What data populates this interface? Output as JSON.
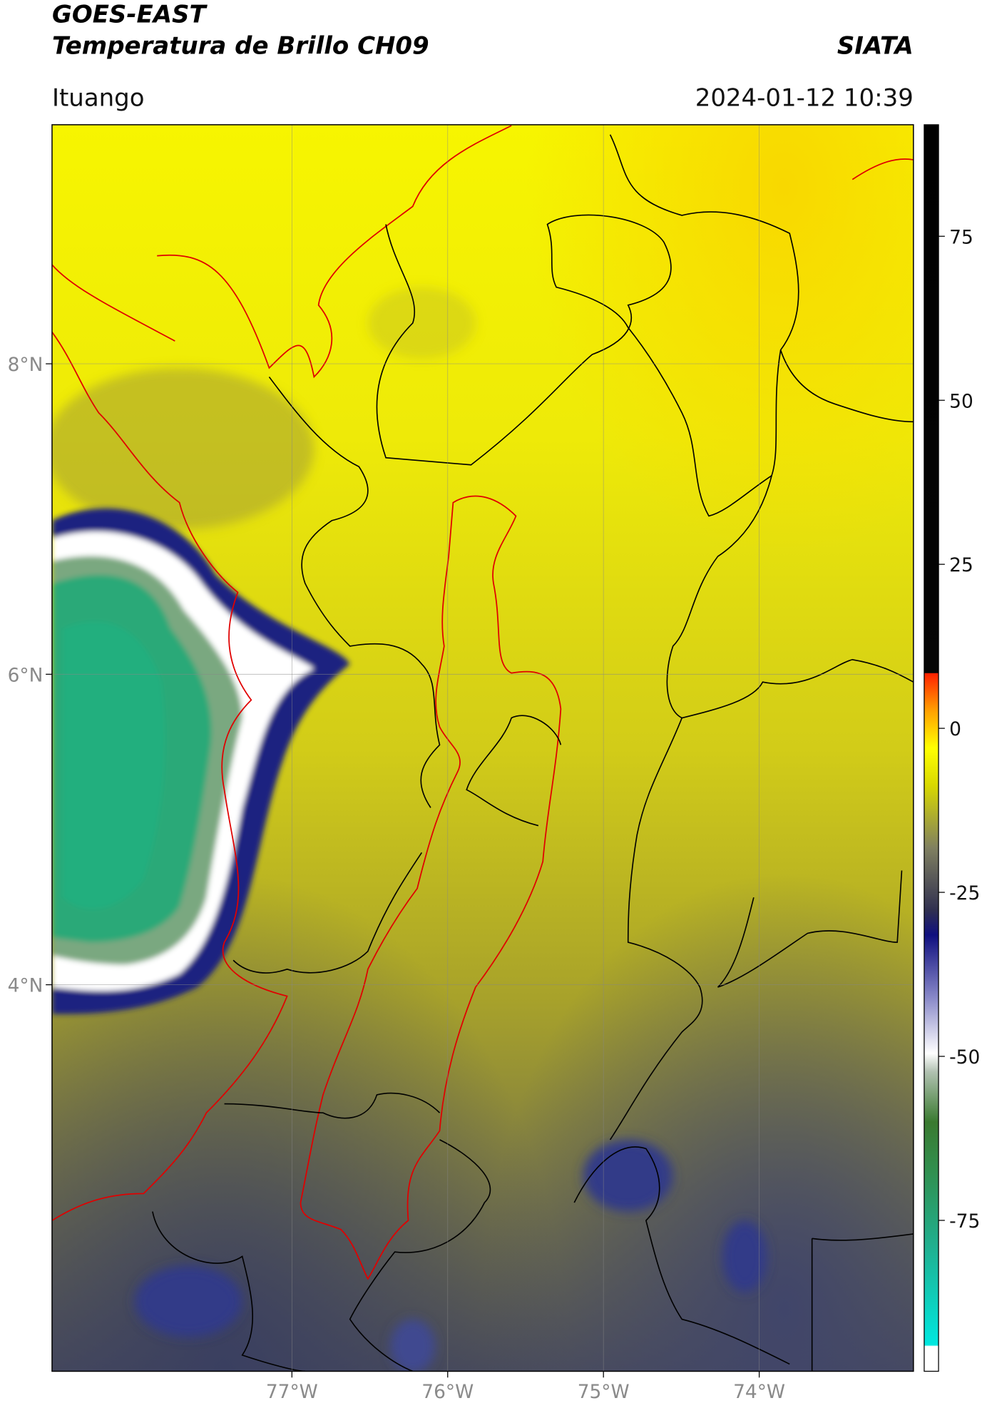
{
  "header": {
    "satellite": "GOES-EAST",
    "product": "Temperatura de Brillo CH09",
    "agency": "SIATA",
    "location": "Ituango",
    "datetime": "2024-01-12 10:39"
  },
  "chart_data": {
    "type": "map",
    "xlim": [
      -78.54,
      -73.01
    ],
    "ylim": [
      1.51,
      9.54
    ],
    "xticks": [
      {
        "value": -77,
        "label": "77°W"
      },
      {
        "value": -76,
        "label": "76°W"
      },
      {
        "value": -75,
        "label": "75°W"
      },
      {
        "value": -74,
        "label": "74°W"
      }
    ],
    "yticks": [
      {
        "value": 8,
        "label": "8°N"
      },
      {
        "value": 6,
        "label": "6°N"
      },
      {
        "value": 4,
        "label": "4°N"
      }
    ],
    "grid": true,
    "colorbar": {
      "lim": [
        -98,
        92
      ],
      "ticks": [
        75,
        50,
        25,
        0,
        -25,
        -50,
        -75
      ]
    }
  }
}
